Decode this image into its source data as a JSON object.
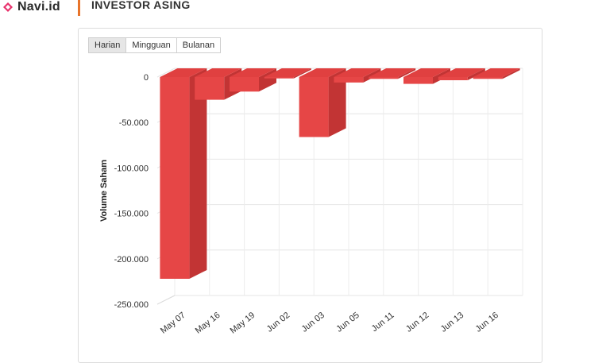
{
  "header": {
    "brand_name": "Navi.id",
    "section_title": "INVESTOR ASING",
    "brand_color": "#e8316c",
    "accent_color": "#e8742a"
  },
  "range_tabs": [
    {
      "label": "Harian",
      "active": true
    },
    {
      "label": "Mingguan",
      "active": false
    },
    {
      "label": "Bulanan",
      "active": false
    }
  ],
  "chart_data": {
    "type": "bar",
    "style": "3d",
    "categories": [
      "May 07",
      "May 16",
      "May 19",
      "Jun 02",
      "Jun 03",
      "Jun 05",
      "Jun 11",
      "Jun 12",
      "Jun 13",
      "Jun 16"
    ],
    "values": [
      -222000,
      -25000,
      -16000,
      -1500,
      -66000,
      -6000,
      -2000,
      -7500,
      -3500,
      -2000
    ],
    "ylabel": "Volume Saham",
    "ylim": [
      -250000,
      0
    ],
    "yticks": [
      0,
      -50000,
      -100000,
      -150000,
      -200000,
      -250000
    ],
    "ytick_labels": [
      "0",
      "-50.000",
      "-100.000",
      "-150.000",
      "-200.000",
      "-250.000"
    ],
    "bar_color": "#e64646",
    "grid": true
  }
}
